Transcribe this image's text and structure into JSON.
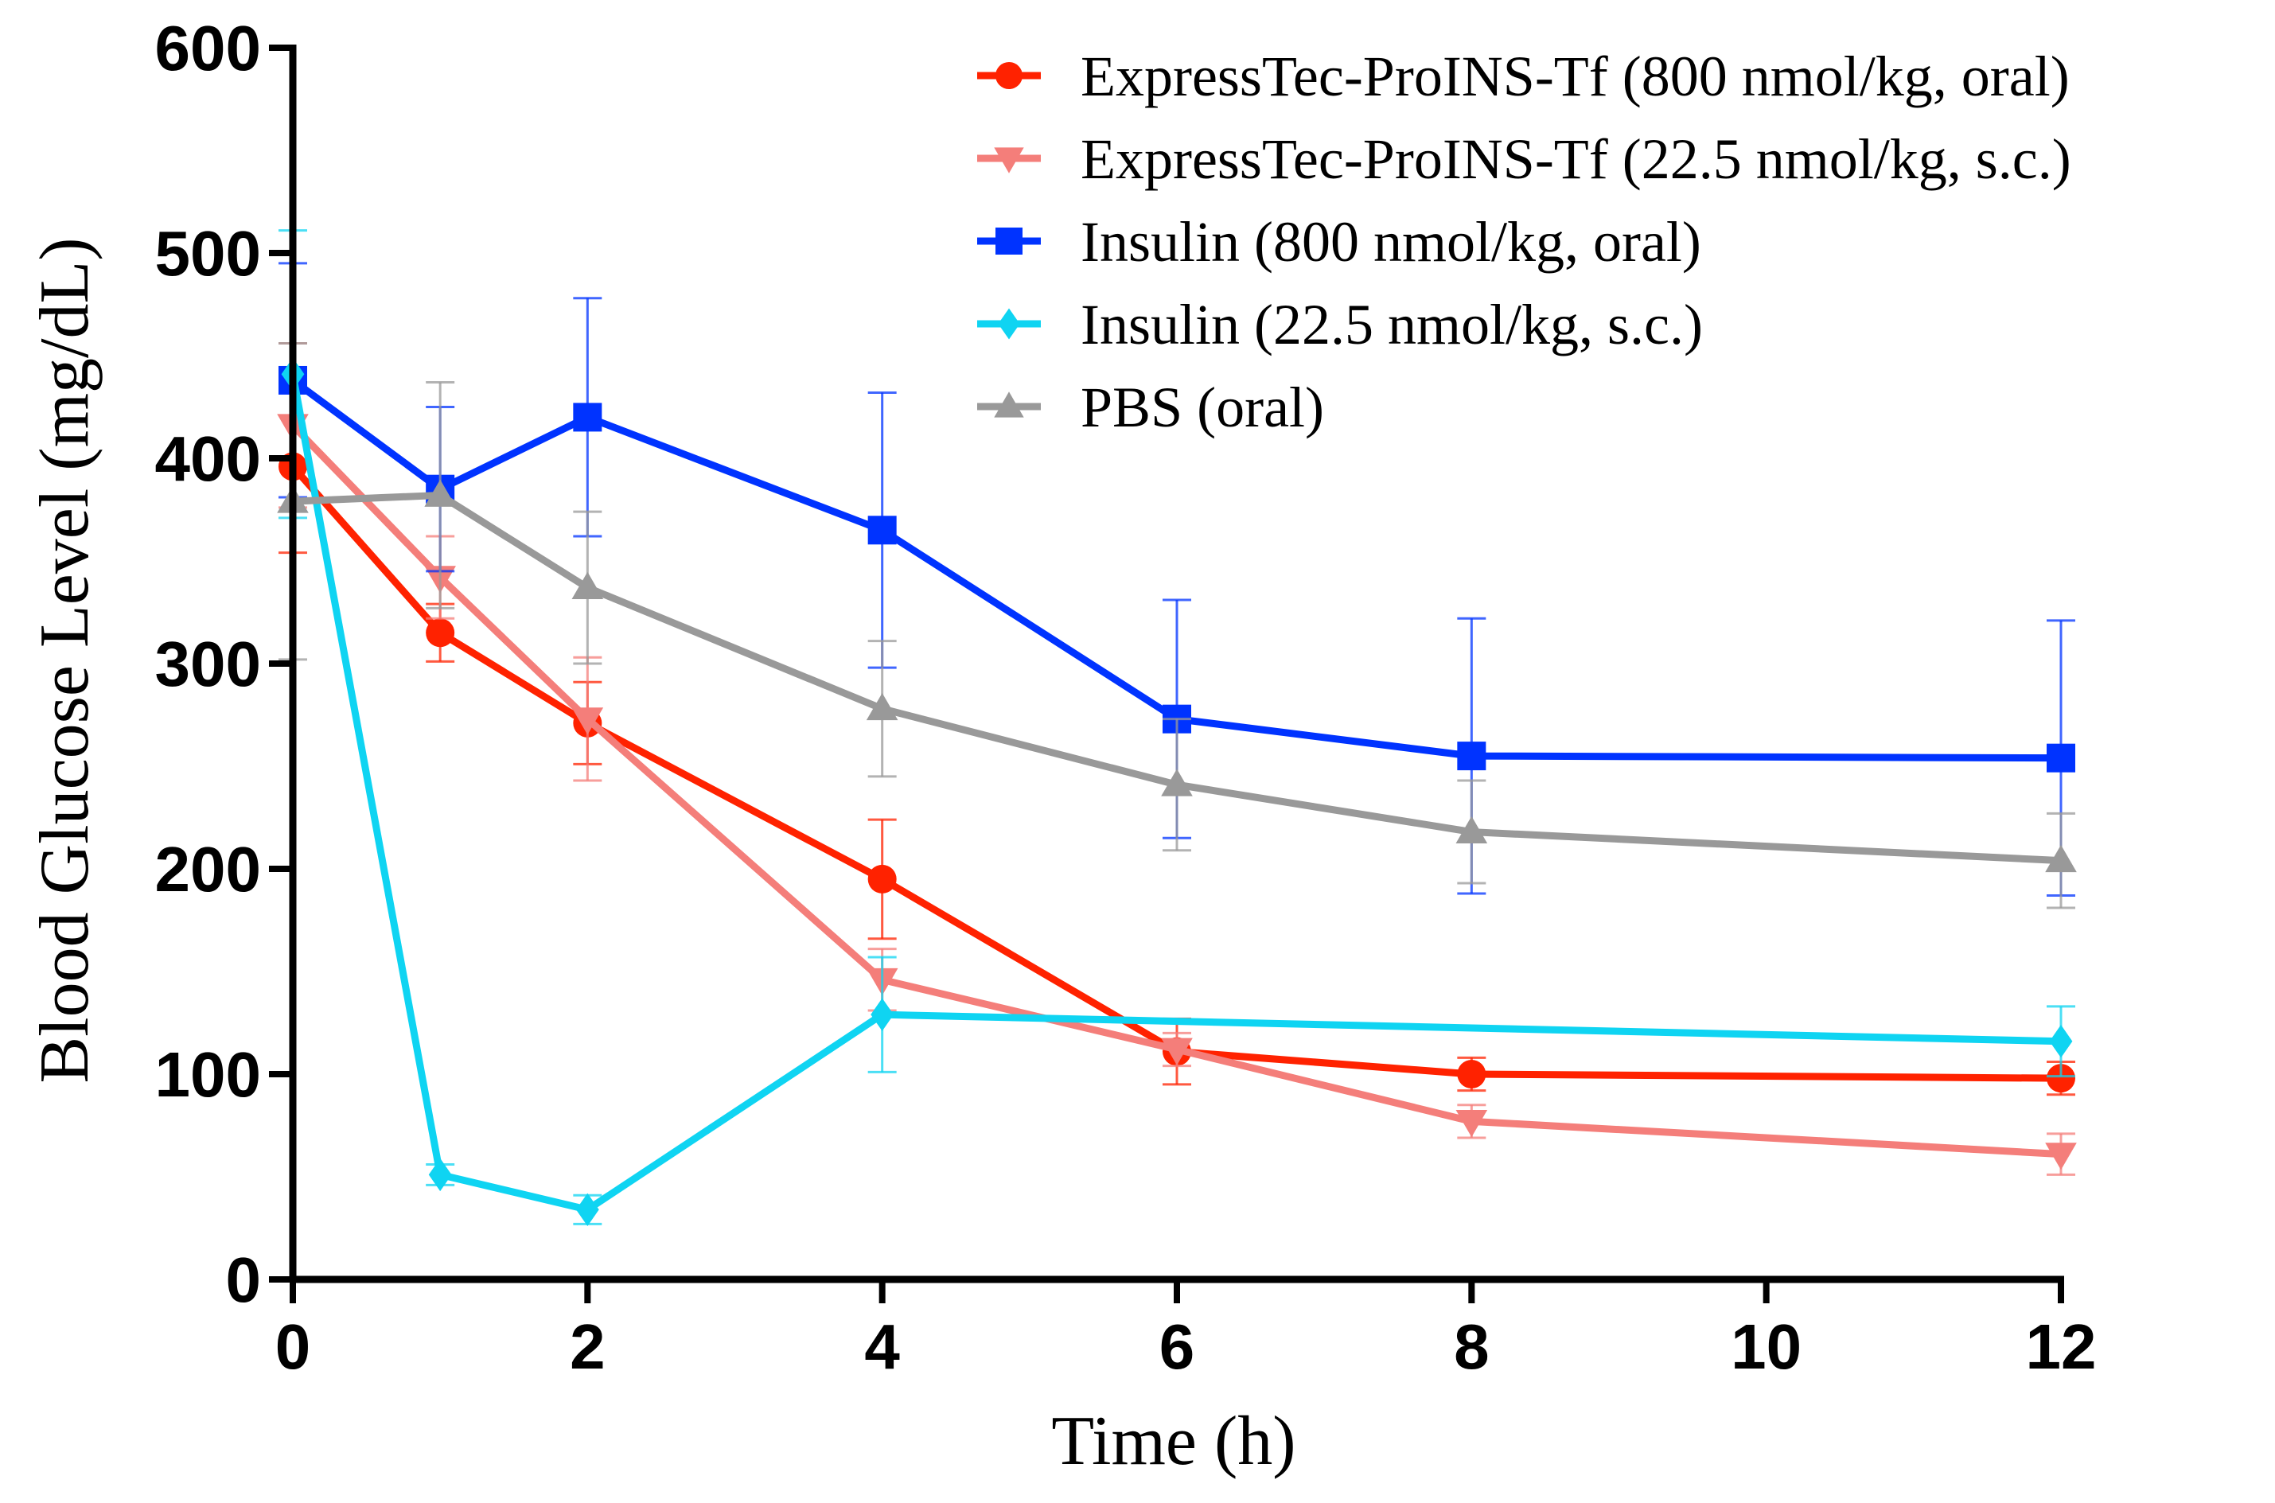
{
  "chart_data": {
    "type": "line",
    "title": "",
    "xlabel": "Time (h)",
    "ylabel": "Blood Glucose Level (mg/dL)",
    "xlim": [
      0,
      12
    ],
    "ylim": [
      0,
      600
    ],
    "xticks": [
      "0",
      "2",
      "4",
      "6",
      "8",
      "10",
      "12"
    ],
    "yticks": [
      "0",
      "100",
      "200",
      "300",
      "400",
      "500",
      "600"
    ],
    "grid": false,
    "legend_position": "top-right",
    "series": [
      {
        "name": "ExpressTec-ProINS-Tf (800 nmol/kg, oral)",
        "color": "#ff2200",
        "marker": "circle",
        "x": [
          0,
          1,
          2,
          4,
          6,
          8,
          12
        ],
        "y": [
          396,
          315,
          271,
          195,
          111,
          100,
          98
        ],
        "err": [
          42,
          14,
          20,
          29,
          16,
          8,
          8
        ]
      },
      {
        "name": "ExpressTec-ProINS-Tf (22.5 nmol/kg, s.c.)",
        "color": "#f47e7a",
        "marker": "triangle-down",
        "x": [
          0,
          1,
          2,
          4,
          6,
          8,
          12
        ],
        "y": [
          416,
          342,
          273,
          146,
          112,
          77,
          61
        ],
        "err": [
          40,
          20,
          30,
          15,
          8,
          8,
          10
        ]
      },
      {
        "name": "Insulin (800 nmol/kg, oral)",
        "color": "#0033ff",
        "marker": "square",
        "x": [
          0,
          1,
          2,
          4,
          6,
          8,
          12
        ],
        "y": [
          438,
          385,
          420,
          365,
          273,
          255,
          254
        ],
        "err": [
          57,
          40,
          58,
          67,
          58,
          67,
          67
        ]
      },
      {
        "name": "Insulin (22.5 nmol/kg, s.c.)",
        "color": "#0fd4f2",
        "marker": "diamond",
        "x": [
          0,
          1,
          2,
          4,
          12
        ],
        "y": [
          441,
          51,
          34,
          129,
          116
        ],
        "err": [
          70,
          5,
          7,
          28,
          17
        ]
      },
      {
        "name": "PBS (oral)",
        "color": "#999999",
        "marker": "triangle-up",
        "x": [
          0,
          1,
          2,
          4,
          6,
          8,
          12
        ],
        "y": [
          379,
          382,
          337,
          278,
          241,
          218,
          204
        ],
        "err": [
          77,
          55,
          37,
          33,
          32,
          25,
          23
        ]
      }
    ]
  }
}
